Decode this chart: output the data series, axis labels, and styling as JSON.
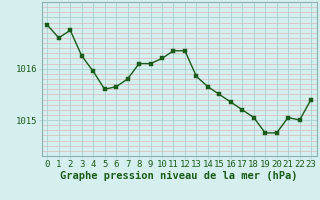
{
  "x": [
    0,
    1,
    2,
    3,
    4,
    5,
    6,
    7,
    8,
    9,
    10,
    11,
    12,
    13,
    14,
    15,
    16,
    17,
    18,
    19,
    20,
    21,
    22,
    23
  ],
  "y": [
    1016.85,
    1016.6,
    1016.75,
    1016.25,
    1015.95,
    1015.6,
    1015.65,
    1015.8,
    1016.1,
    1016.1,
    1016.2,
    1016.35,
    1016.35,
    1015.85,
    1015.65,
    1015.5,
    1015.35,
    1015.2,
    1015.05,
    1014.75,
    1014.75,
    1015.05,
    1015.0,
    1015.4
  ],
  "xlabel": "Graphe pression niveau de la mer (hPa)",
  "ytick_vals": [
    1015,
    1016
  ],
  "ytick_labels": [
    "1015",
    "1016"
  ],
  "ylim": [
    1014.3,
    1017.3
  ],
  "xlim": [
    -0.5,
    23.5
  ],
  "bg_color": "#d5efee",
  "grid_color": "#c0dede",
  "grid_color_dark": "#aacfcf",
  "line_color": "#1a5c1a",
  "marker_color": "#1a5c1a",
  "xlabel_color": "#1a5c1a",
  "tick_label_color": "#1a5c1a",
  "xlabel_fontsize": 7.5,
  "tick_fontsize": 6.5,
  "marker_size": 2.5,
  "line_width": 1.0
}
